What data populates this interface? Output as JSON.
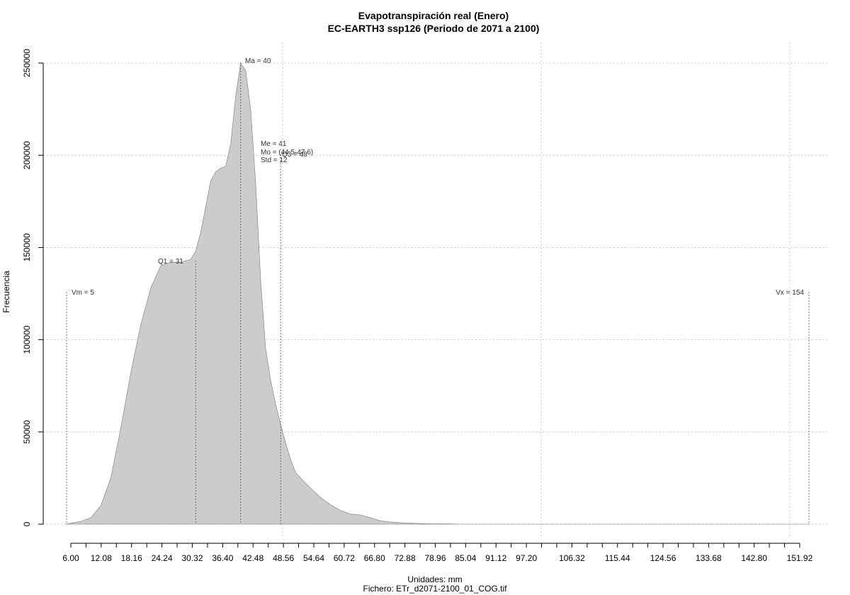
{
  "chart_data": {
    "type": "area",
    "title": "Evapotranspiración real (Enero)",
    "subtitle": "EC-EARTH3 ssp126 (Periodo de 2071 a 2100)",
    "xlabel": "Unidades: mm",
    "caption": "Fichero: ETr_d2071-2100_01_COG.tif",
    "ylabel": "Frecuencia",
    "xlim": [
      6.0,
      151.92
    ],
    "ylim": [
      0,
      250000
    ],
    "x_ticks": [
      "6.00",
      "12.08",
      "18.16",
      "24.24",
      "30.32",
      "36.40",
      "42.48",
      "48.56",
      "54.64",
      "60.72",
      "66.80",
      "72.88",
      "78.96",
      "85.04",
      "91.12",
      "97.20",
      "106.32",
      "115.44",
      "124.56",
      "133.68",
      "142.80",
      "151.92"
    ],
    "y_ticks": [
      "0",
      "50000",
      "100000",
      "150000",
      "200000",
      "250000"
    ],
    "grid": true,
    "density": {
      "x": [
        5,
        6,
        8,
        10,
        12,
        14,
        16,
        18,
        20,
        22,
        24,
        26,
        28,
        30,
        31,
        32,
        33,
        34,
        35,
        36,
        37,
        38,
        39,
        40,
        41,
        42,
        43,
        44,
        45,
        46,
        47,
        48,
        49,
        50,
        51,
        52,
        54,
        56,
        58,
        60,
        62,
        64,
        66,
        68,
        70,
        72,
        74,
        76,
        78,
        80,
        82,
        84,
        88,
        92,
        96,
        100,
        110,
        120,
        130,
        140,
        150,
        154
      ],
      "y": [
        0,
        500,
        1500,
        3500,
        10000,
        25000,
        52000,
        82000,
        108000,
        128000,
        140000,
        142000,
        142000,
        143500,
        148000,
        158000,
        172000,
        186000,
        191000,
        193000,
        194000,
        206000,
        232000,
        250000,
        246000,
        225000,
        185000,
        132000,
        95000,
        78000,
        65000,
        54000,
        44000,
        35000,
        28000,
        25000,
        19500,
        14500,
        10500,
        7500,
        5500,
        5000,
        3500,
        1800,
        1200,
        800,
        500,
        300,
        200,
        150,
        100,
        0,
        0,
        0,
        0,
        0,
        0,
        0,
        0,
        0,
        0,
        0
      ]
    },
    "annotations": {
      "min": "Vm = 5",
      "max": "Vx = 154",
      "q1": "Q1 = 31",
      "ma": "Ma = 40",
      "me": "Me = 41",
      "mo": "Mo = (44.5-47.6)",
      "q3": "Q3 = 48",
      "std": "Std = 12"
    },
    "markers": {
      "min": 5,
      "q1": 31,
      "ma": 40,
      "q3": 48,
      "max": 154
    }
  }
}
